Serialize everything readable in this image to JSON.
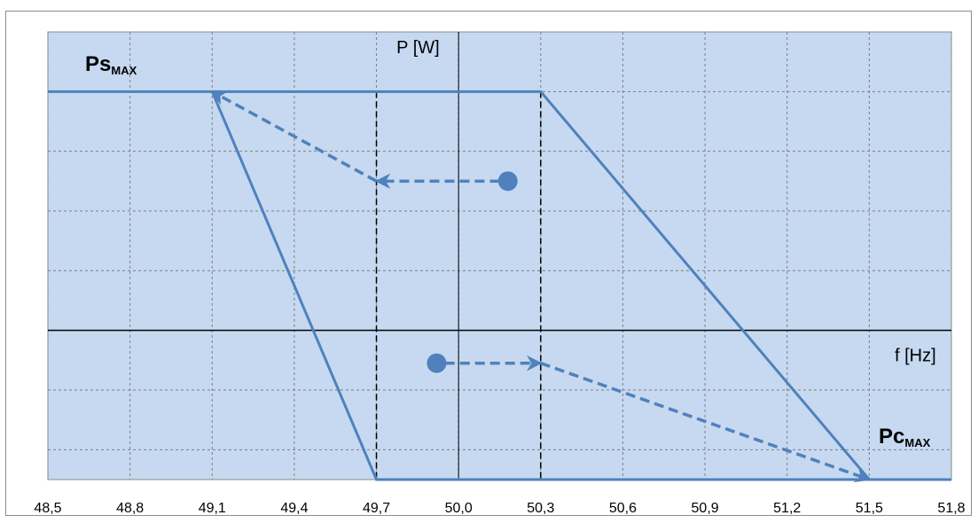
{
  "chart_data": {
    "type": "line",
    "xlabel": "f [Hz]",
    "ylabel": "P [W]",
    "xlim": [
      48.5,
      51.8
    ],
    "x_ticks": [
      "48,5",
      "48,8",
      "49,1",
      "49,4",
      "49,7",
      "50,0",
      "50,3",
      "50,6",
      "50,9",
      "51,2",
      "51,5",
      "51,8"
    ],
    "ylim": [
      -2.5,
      5.0
    ],
    "y_grid": [
      -2,
      -1,
      0,
      1,
      2,
      3,
      4
    ],
    "grid": true,
    "background": "#c6d9f0",
    "series_color": "#4f81bd",
    "series": [
      {
        "style": "solid",
        "points": [
          [
            48.5,
            4
          ],
          [
            50.3,
            4
          ],
          [
            51.5,
            -2.5
          ],
          [
            51.8,
            -2.5
          ]
        ]
      },
      {
        "style": "solid",
        "points": [
          [
            49.1,
            4
          ],
          [
            49.7,
            -2.5
          ],
          [
            51.8,
            -2.5
          ]
        ]
      }
    ],
    "markers": [
      {
        "x": 50.18,
        "y": 2.5
      },
      {
        "x": 49.92,
        "y": -0.55
      }
    ],
    "arrows": [
      {
        "from": [
          50.15,
          2.5
        ],
        "to": [
          49.7,
          2.5
        ]
      },
      {
        "from": [
          49.7,
          2.5
        ],
        "to": [
          49.1,
          4
        ]
      },
      {
        "from": [
          49.95,
          -0.55
        ],
        "to": [
          50.3,
          -0.55
        ]
      },
      {
        "from": [
          50.3,
          -0.55
        ],
        "to": [
          51.5,
          -2.5
        ]
      }
    ],
    "vertical_dashed_lines": [
      49.7,
      50.3
    ],
    "annotations": [
      {
        "text": "Ps",
        "sub": "MAX"
      },
      {
        "text": "Pc",
        "sub": "MAX"
      }
    ]
  }
}
